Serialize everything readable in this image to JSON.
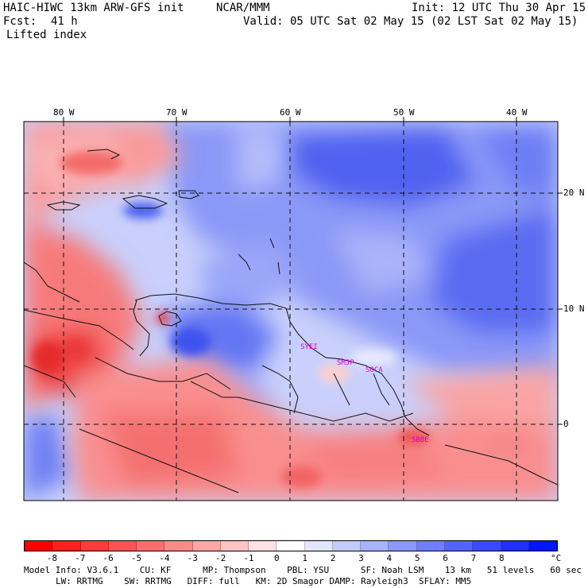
{
  "header": {
    "model_line": "HAIC-HIWC 13km ARW-GFS init",
    "agency": "NCAR/MMM",
    "init": "Init: 12 UTC Thu 30 Apr 15",
    "fcst_label": "Fcst:",
    "fcst_value": "41 h",
    "valid": "Valid: 05 UTC Sat 02 May 15 (02 LST Sat 02 May 15)",
    "field": "Lifted index"
  },
  "map": {
    "lon_labels": [
      "80 W",
      "70 W",
      "60 W",
      "50 W",
      "40 W"
    ],
    "lat_labels": [
      "20 N",
      "10 N",
      "0"
    ],
    "site_labels": [
      "SYEI",
      "SMJP",
      "SOCA",
      "SBBE"
    ],
    "site_label_color": "#d400d4"
  },
  "colorbar": {
    "ticks": [
      "-8",
      "-7",
      "-6",
      "-5",
      "-4",
      "-3",
      "-2",
      "-1",
      "0",
      "1",
      "2",
      "3",
      "4",
      "5",
      "6",
      "7",
      "8"
    ],
    "unit": "°C",
    "colors": [
      "#ff0000",
      "#ff2020",
      "#ff3c3c",
      "#ff5454",
      "#ff6e6e",
      "#ff8a8a",
      "#ffa6a6",
      "#ffc4c4",
      "#ffe2e2",
      "#ffffff",
      "#e2e6ff",
      "#c4ccff",
      "#a6b2ff",
      "#8a98ff",
      "#6e7eff",
      "#5464ff",
      "#3c4aff",
      "#2030ff",
      "#0016ff"
    ]
  },
  "footer": {
    "line1": "Model Info: V3.6.1    CU: KF      MP: Thompson    PBL: YSU      SF: Noah LSM    13 km   51 levels   60 sec",
    "line2": "LW: RRTMG    SW: RRTMG   DIFF: full   KM: 2D Smagor DAMP: Rayleigh3  SFLAY: MM5"
  }
}
